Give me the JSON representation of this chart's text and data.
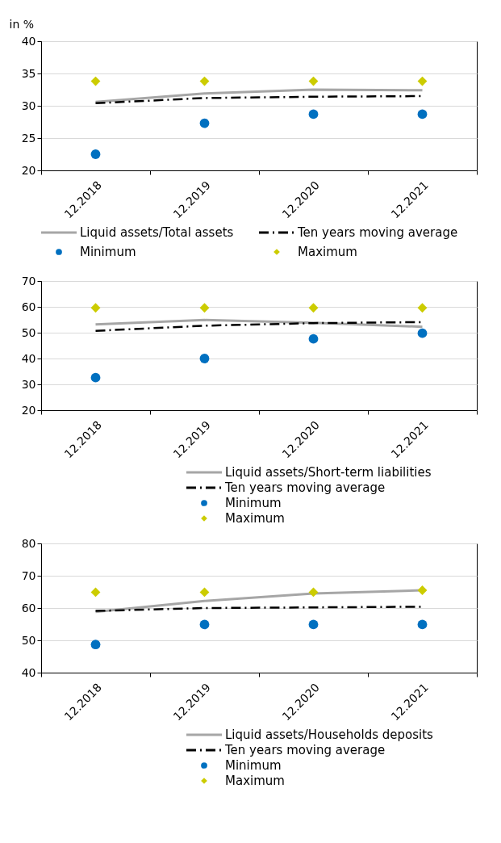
{
  "chart_data": [
    {
      "type": "line",
      "ylabel": "in %",
      "categories": [
        "12.2018",
        "12.2019",
        "12.2020",
        "12.2021"
      ],
      "ylim": [
        20,
        40
      ],
      "yticks": [
        20,
        25,
        30,
        35,
        40
      ],
      "grid": "y",
      "legend": "bottom",
      "series": [
        {
          "name": "Liquid assets/Total assets",
          "line_style": "solid",
          "color": "#a6a6a6",
          "values": [
            30.6,
            31.9,
            32.5,
            32.4
          ]
        },
        {
          "name": "Ten years moving average",
          "type": "line",
          "line_style": "dashed",
          "color": "#000000",
          "values": [
            30.4,
            31.2,
            31.4,
            31.5
          ]
        },
        {
          "name": "Minimum",
          "type": "scatter",
          "marker": "circle",
          "color": "#0070c0",
          "values": [
            22.5,
            27.3,
            28.7,
            28.7
          ]
        },
        {
          "name": "Maximum",
          "type": "scatter",
          "marker": "diamond",
          "color": "#cccc00",
          "values": [
            33.8,
            33.8,
            33.8,
            33.8
          ]
        }
      ]
    },
    {
      "type": "line",
      "categories": [
        "12.2018",
        "12.2019",
        "12.2020",
        "12.2021"
      ],
      "ylim": [
        20,
        70
      ],
      "yticks": [
        20,
        30,
        40,
        50,
        60,
        70
      ],
      "grid": "y",
      "legend": "bottom",
      "series": [
        {
          "name": "Liquid assets/Short-term liabilities",
          "line_style": "solid",
          "color": "#a6a6a6",
          "values": [
            53.2,
            54.9,
            53.8,
            52.3
          ]
        },
        {
          "name": "Ten years moving average",
          "type": "line",
          "line_style": "dashed",
          "color": "#000000",
          "values": [
            50.7,
            52.7,
            53.7,
            54.1
          ]
        },
        {
          "name": "Minimum",
          "type": "scatter",
          "marker": "circle",
          "color": "#0070c0",
          "values": [
            32.6,
            40.0,
            47.6,
            49.8
          ]
        },
        {
          "name": "Maximum",
          "type": "scatter",
          "marker": "diamond",
          "color": "#cccc00",
          "values": [
            59.6,
            59.6,
            59.6,
            59.6
          ]
        }
      ]
    },
    {
      "type": "line",
      "categories": [
        "12.2018",
        "12.2019",
        "12.2020",
        "12.2021"
      ],
      "ylim": [
        40,
        80
      ],
      "yticks": [
        40,
        50,
        60,
        70,
        80
      ],
      "grid": "y",
      "legend": "bottom",
      "series": [
        {
          "name": "Liquid assets/Households deposits",
          "line_style": "solid",
          "color": "#a6a6a6",
          "values": [
            58.8,
            62.2,
            64.5,
            65.5
          ]
        },
        {
          "name": "Ten years moving average",
          "type": "line",
          "line_style": "dashed",
          "color": "#000000",
          "values": [
            59.1,
            60.0,
            60.2,
            60.4
          ]
        },
        {
          "name": "Minimum",
          "type": "scatter",
          "marker": "circle",
          "color": "#0070c0",
          "values": [
            48.7,
            54.9,
            54.9,
            54.9
          ]
        },
        {
          "name": "Maximum",
          "type": "scatter",
          "marker": "diamond",
          "color": "#cccc00",
          "values": [
            64.9,
            64.9,
            64.9,
            65.5
          ]
        }
      ]
    }
  ]
}
